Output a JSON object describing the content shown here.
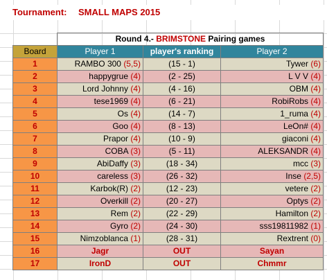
{
  "tournament": {
    "label": "Tournament:",
    "name": "SMALL MAPS 2015"
  },
  "round": {
    "prefix": "Round 4.- ",
    "map": "BRIMSTONE",
    "suffix": " Pairing games"
  },
  "headers": {
    "board": "Board",
    "player1": "Player 1",
    "ranking": "player's ranking",
    "player2": "Player 2"
  },
  "rows": [
    {
      "board": "1",
      "p1": "RAMBO 300 ",
      "p1pts": "(5,5)",
      "rank": "(15 - 1)",
      "p2": "Tywer ",
      "p2pts": "(6)",
      "shade": "light"
    },
    {
      "board": "2",
      "p1": "happygrue ",
      "p1pts": "(4)",
      "rank": "(2 - 25)",
      "p2": "L V V ",
      "p2pts": "(4)",
      "shade": "dark"
    },
    {
      "board": "3",
      "p1": "Lord Johnny  ",
      "p1pts": "(4)",
      "rank": "(4 - 16)",
      "p2": "OBM ",
      "p2pts": "(4)",
      "shade": "light"
    },
    {
      "board": "4",
      "p1": "tese1969 ",
      "p1pts": "(4)",
      "rank": "(6 - 21)",
      "p2": "RobiRobs ",
      "p2pts": "(4)",
      "shade": "dark"
    },
    {
      "board": "5",
      "p1": "Os ",
      "p1pts": "(4)",
      "rank": "(14 - 7)",
      "p2": "1_ruma ",
      "p2pts": "(4)",
      "shade": "light"
    },
    {
      "board": "6",
      "p1": "Goo ",
      "p1pts": "(4)",
      "rank": "(8 - 13)",
      "p2": "LeOn# ",
      "p2pts": "(4)",
      "shade": "dark"
    },
    {
      "board": "7",
      "p1": "Prapor ",
      "p1pts": "(4)",
      "rank": "(10 - 9)",
      "p2": "giaconi ",
      "p2pts": "(4)",
      "shade": "light"
    },
    {
      "board": "8",
      "p1": "COBA ",
      "p1pts": "(3)",
      "rank": "(5 - 11)",
      "p2": "ALEKSANDR ",
      "p2pts": "(4)",
      "shade": "dark"
    },
    {
      "board": "9",
      "p1": "AbiDaffy ",
      "p1pts": "(3)",
      "rank": "(18 - 34)",
      "p2": "mcc ",
      "p2pts": "(3)",
      "shade": "light"
    },
    {
      "board": "10",
      "p1": "careless ",
      "p1pts": "(3)",
      "rank": "(26 - 32)",
      "p2": "Inse ",
      "p2pts": "(2,5)",
      "shade": "dark"
    },
    {
      "board": "11",
      "p1": "Karbok(R) ",
      "p1pts": "(2)",
      "rank": "(12 - 23)",
      "p2": "vetere ",
      "p2pts": "(2)",
      "shade": "light"
    },
    {
      "board": "12",
      "p1": "Overkill ",
      "p1pts": "(2)",
      "rank": "(20 - 27)",
      "p2": "Optys ",
      "p2pts": "(2)",
      "shade": "dark"
    },
    {
      "board": "13",
      "p1": "Rem ",
      "p1pts": "(2)",
      "rank": "(22 - 29)",
      "p2": "Hamilton ",
      "p2pts": "(2)",
      "shade": "light"
    },
    {
      "board": "14",
      "p1": "Gyro ",
      "p1pts": "(2)",
      "rank": "(24 - 30)",
      "p2": "sss19811982 ",
      "p2pts": "(1)",
      "shade": "dark"
    },
    {
      "board": "15",
      "p1": "Nimzoblanca ",
      "p1pts": "(1)",
      "rank": "(28 - 31)",
      "p2": "Rextrent ",
      "p2pts": "(0)",
      "shade": "light"
    }
  ],
  "out_rows": [
    {
      "board": "16",
      "p1": "Jagr",
      "rank": "OUT",
      "p2": "Sayan",
      "shade": "dark"
    },
    {
      "board": "17",
      "p1": "IronD",
      "rank": "OUT",
      "p2": "Chmmr",
      "shade": "light"
    }
  ]
}
